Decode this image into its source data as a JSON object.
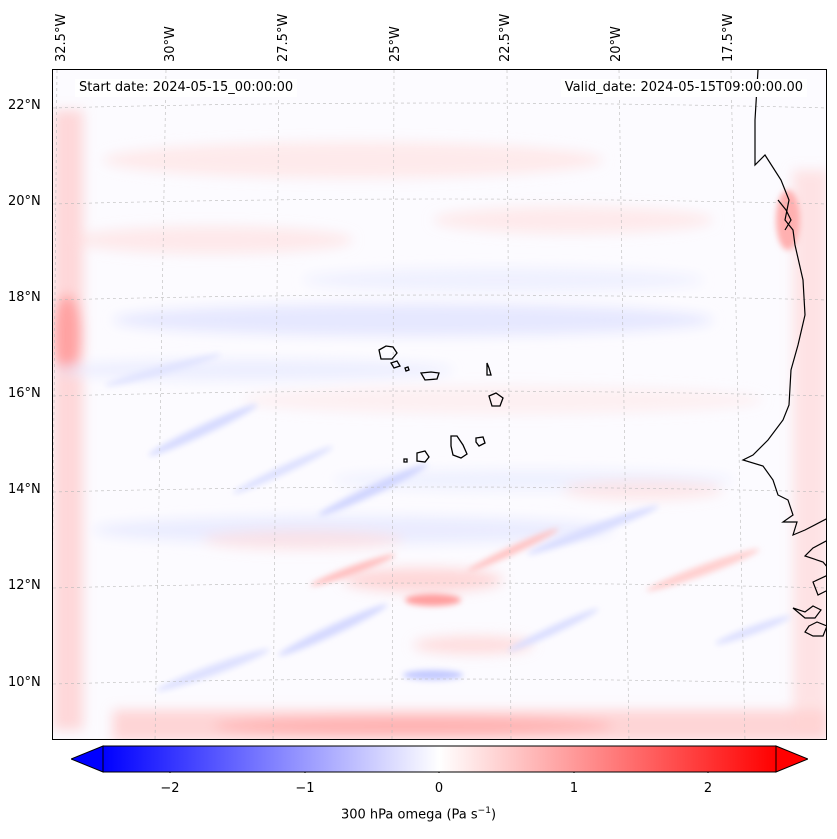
{
  "map": {
    "start_date": "Start date: 2024-05-15_00:00:00",
    "valid_date": "Valid_date: 2024-05-15T09:00:00.00",
    "lon_labels": [
      "32.5°W",
      "30°W",
      "27.5°W",
      "25°W",
      "22.5°W",
      "20°W",
      "17.5°W"
    ],
    "lat_labels": [
      "22°N",
      "20°N",
      "18°N",
      "16°N",
      "14°N",
      "12°N",
      "10°N"
    ],
    "region": "Cape Verde / West Africa coast"
  },
  "colorbar": {
    "label_prefix": "300 hPa omega (Pa s",
    "label_exp": "−1",
    "label_suffix": ")",
    "ticks": [
      "−2",
      "−1",
      "0",
      "1",
      "2"
    ],
    "tick_values": [
      -2,
      -1,
      0,
      1,
      2
    ],
    "range": [
      -2.5,
      2.5
    ],
    "colormap": "bwr",
    "extend": "both"
  },
  "colors": {
    "negative": "#0000ff",
    "neutral": "#ffffff",
    "positive": "#ff0000",
    "coastline": "#000000"
  }
}
